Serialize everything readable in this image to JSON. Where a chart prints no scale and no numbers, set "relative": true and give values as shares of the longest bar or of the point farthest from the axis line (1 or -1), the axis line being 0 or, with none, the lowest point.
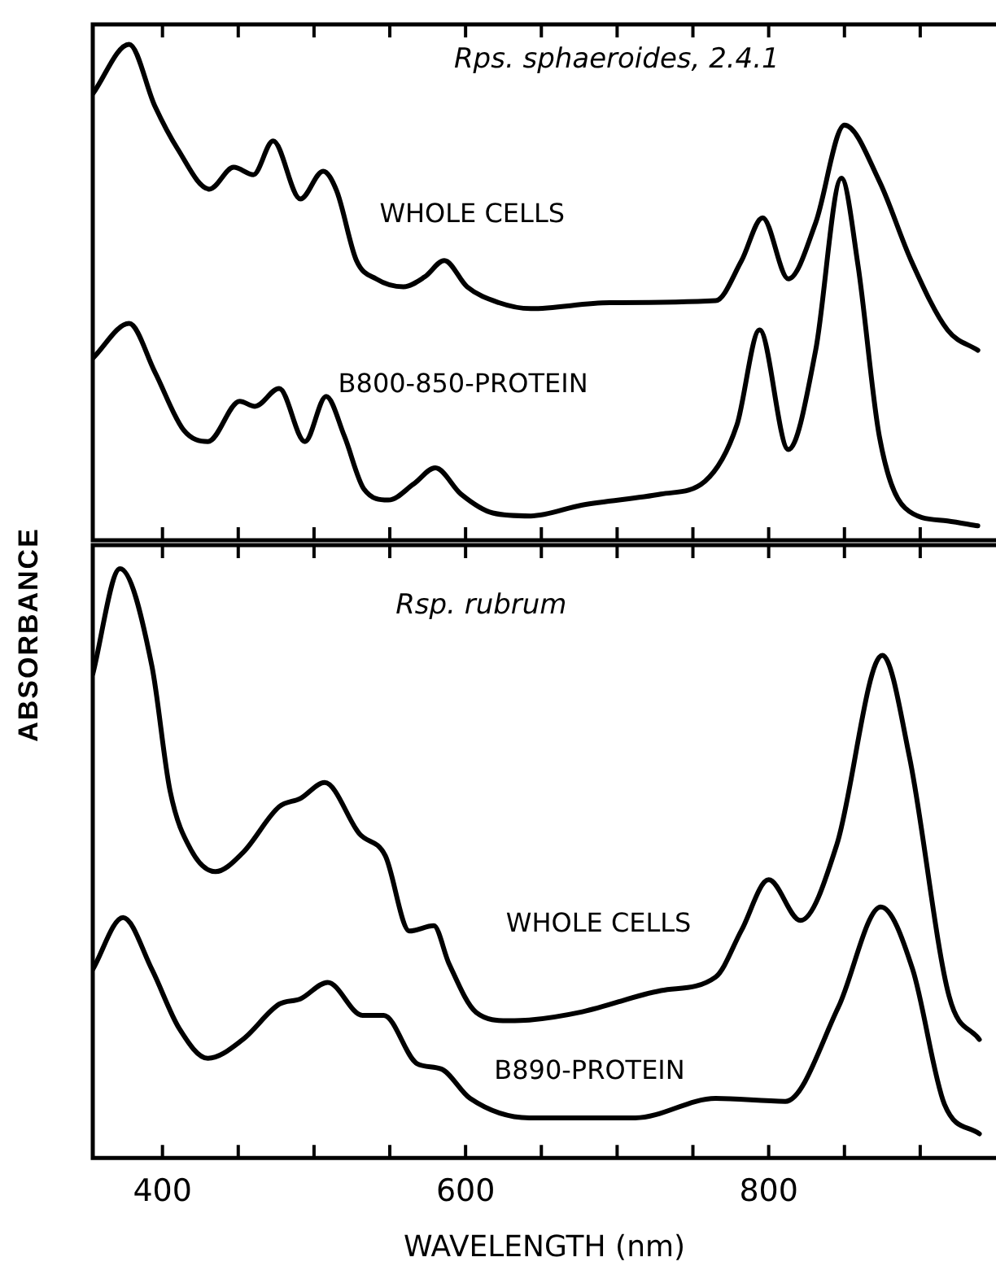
{
  "chart_data": [
    {
      "type": "line",
      "title": "Rps. sphaeroides, 2.4.1",
      "ylabel": "ABSORBANCE",
      "relative": true,
      "xlim": [
        354,
        950
      ],
      "xticks": [
        400,
        {
          "value": 450,
          "label": null
        },
        {
          "value": 500,
          "label": null
        },
        {
          "value": 550,
          "label": null
        },
        600,
        {
          "value": 650,
          "label": null
        },
        {
          "value": 700,
          "label": null
        },
        {
          "value": 750,
          "label": null
        },
        800,
        {
          "value": 850,
          "label": null
        },
        {
          "value": 900,
          "label": null
        }
      ],
      "tick_labels": false,
      "grid": false,
      "legend": false,
      "series": [
        {
          "name": "WHOLE CELLS",
          "color": "#000000",
          "x": [
            354,
            378,
            395,
            410,
            431,
            447,
            460,
            473,
            491,
            506,
            515,
            528,
            541,
            559,
            573,
            586,
            601,
            622,
            643,
            695,
            765,
            782,
            796,
            813,
            831,
            850,
            873,
            894,
            918,
            938
          ],
          "values": [
            0.9,
            1.0,
            0.875,
            0.789,
            0.708,
            0.752,
            0.737,
            0.805,
            0.688,
            0.744,
            0.704,
            0.564,
            0.527,
            0.511,
            0.531,
            0.564,
            0.511,
            0.479,
            0.467,
            0.479,
            0.483,
            0.563,
            0.65,
            0.527,
            0.64,
            0.837,
            0.724,
            0.564,
            0.424,
            0.383
          ]
        },
        {
          "name": "B800-850-PROTEIN",
          "color": "#000000",
          "x": [
            354,
            378,
            395,
            414,
            430,
            451,
            461,
            477,
            494,
            508,
            520,
            533,
            549,
            566,
            580,
            597,
            618,
            643,
            677,
            729,
            758,
            779,
            794,
            813,
            831,
            848,
            859,
            873,
            890,
            918,
            938
          ],
          "values": [
            0.367,
            0.437,
            0.339,
            0.222,
            0.199,
            0.28,
            0.27,
            0.306,
            0.199,
            0.29,
            0.21,
            0.103,
            0.081,
            0.114,
            0.146,
            0.093,
            0.055,
            0.049,
            0.071,
            0.093,
            0.119,
            0.232,
            0.424,
            0.183,
            0.383,
            0.73,
            0.553,
            0.21,
            0.065,
            0.039,
            0.029
          ]
        }
      ]
    },
    {
      "type": "line",
      "title": "Rsp. rubrum",
      "xlabel": "WAVELENGTH (nm)",
      "relative": true,
      "xlim": [
        354,
        950
      ],
      "xticks": [
        400,
        {
          "value": 450,
          "label": null
        },
        {
          "value": 500,
          "label": null
        },
        {
          "value": 550,
          "label": null
        },
        600,
        {
          "value": 650,
          "label": null
        },
        {
          "value": 700,
          "label": null
        },
        {
          "value": 750,
          "label": null
        },
        800,
        {
          "value": 850,
          "label": null
        },
        {
          "value": 900,
          "label": null
        }
      ],
      "tick_labels": "x",
      "grid": false,
      "legend": false,
      "series": [
        {
          "name": "WHOLE CELLS",
          "color": "#000000",
          "x": [
            354,
            372,
            393,
            405,
            419,
            435,
            453,
            477,
            491,
            507,
            530,
            547,
            563,
            579,
            589,
            607,
            628,
            642,
            677,
            729,
            765,
            782,
            800,
            821,
            845,
            875,
            893,
            919,
            939
          ],
          "values": [
            0.821,
            1.0,
            0.835,
            0.623,
            0.522,
            0.486,
            0.518,
            0.596,
            0.61,
            0.637,
            0.55,
            0.513,
            0.385,
            0.394,
            0.33,
            0.247,
            0.233,
            0.234,
            0.248,
            0.284,
            0.307,
            0.386,
            0.472,
            0.403,
            0.532,
            0.853,
            0.679,
            0.275,
            0.201
          ]
        },
        {
          "name": "B890-PROTEIN",
          "color": "#000000",
          "x": [
            354,
            374,
            393,
            411,
            430,
            453,
            477,
            491,
            509,
            532,
            546,
            568,
            584,
            603,
            642,
            712,
            765,
            811,
            846,
            874,
            895,
            916,
            939
          ],
          "values": [
            0.32,
            0.408,
            0.32,
            0.22,
            0.169,
            0.201,
            0.261,
            0.27,
            0.298,
            0.242,
            0.242,
            0.16,
            0.151,
            0.101,
            0.068,
            0.068,
            0.101,
            0.096,
            0.256,
            0.426,
            0.32,
            0.091,
            0.041
          ]
        }
      ]
    }
  ]
}
